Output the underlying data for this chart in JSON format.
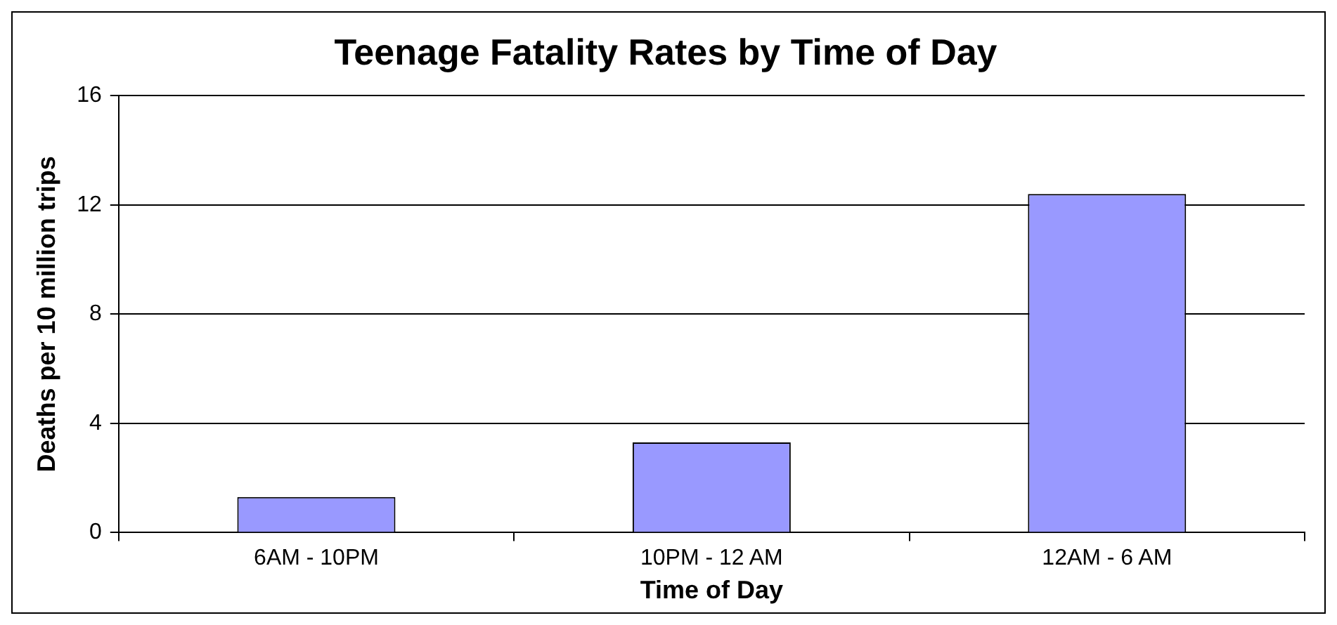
{
  "chart_data": {
    "type": "bar",
    "title": "Teenage Fatality Rates by Time of Day",
    "xlabel": "Time of Day",
    "ylabel": "Deaths per 10 million trips",
    "categories": [
      "6AM - 10PM",
      "10PM - 12 AM",
      "12AM - 6 AM"
    ],
    "values": [
      1.3,
      3.3,
      12.4
    ],
    "color": "#9999ff",
    "ylim": [
      0,
      16
    ],
    "yticks": [
      0,
      4,
      8,
      12,
      16
    ],
    "grid": "y",
    "legend": false
  }
}
